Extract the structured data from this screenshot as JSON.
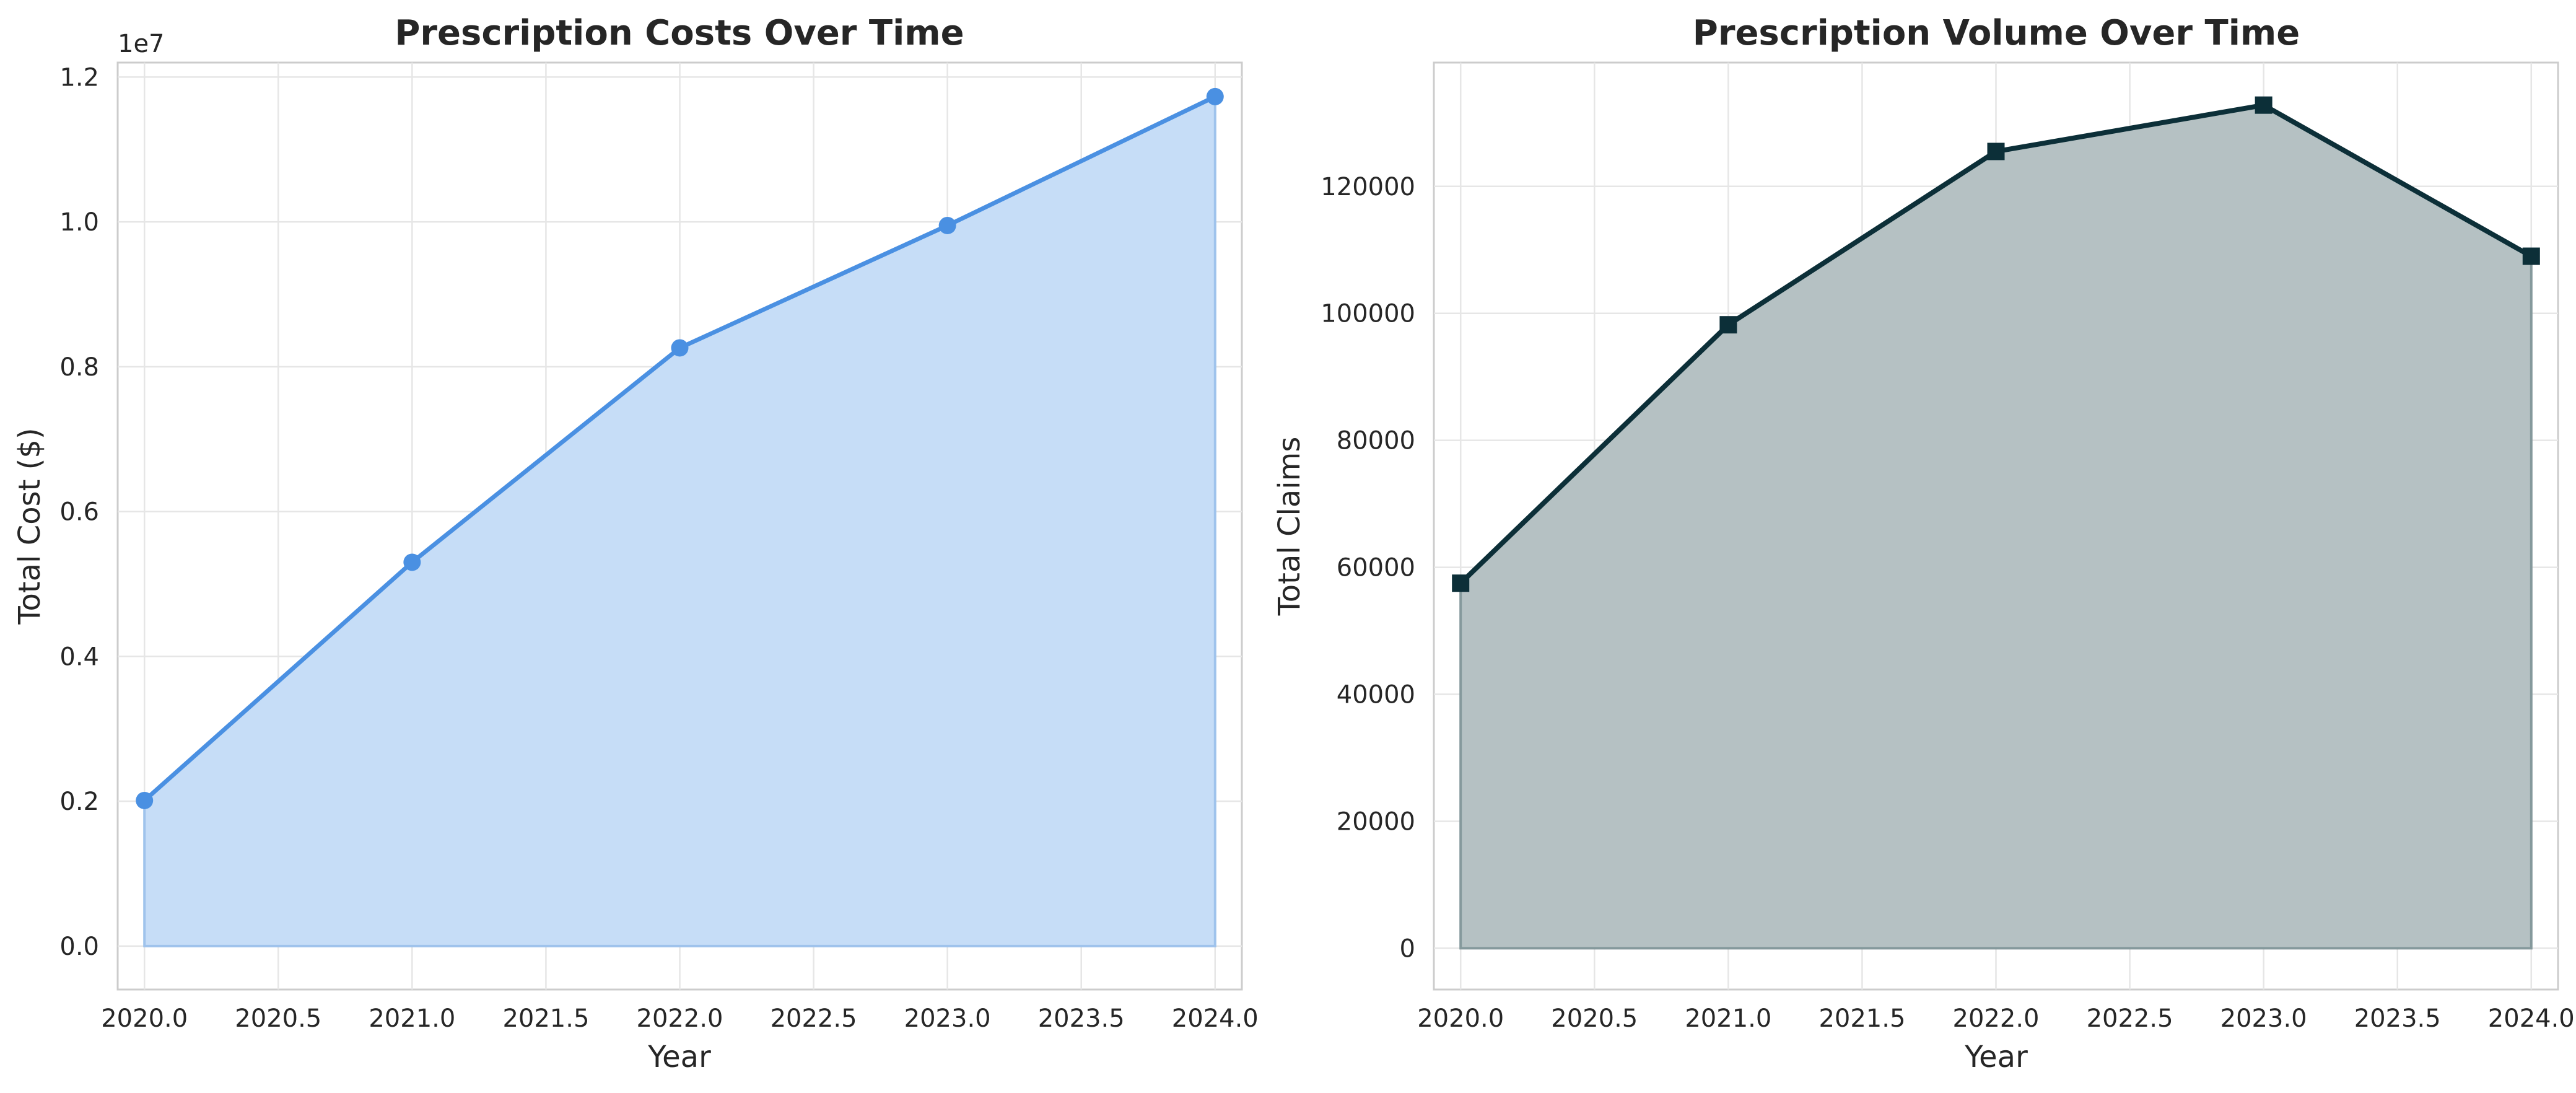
{
  "chart_data": [
    {
      "type": "area",
      "title": "Prescription Costs Over Time",
      "xlabel": "Year",
      "ylabel": "Total Cost ($)",
      "y_offset_label": "1e7",
      "x": [
        2020,
        2021,
        2022,
        2023,
        2024
      ],
      "series": [
        {
          "values": [
            2010000,
            5300000,
            8260000,
            9950000,
            11730000
          ]
        }
      ],
      "xlim": [
        2019.9,
        2024.1
      ],
      "ylim": [
        -0.06,
        1.22
      ],
      "y_scale_factor": 10000000,
      "x_ticks": [
        "2020.0",
        "2020.5",
        "2021.0",
        "2021.5",
        "2022.0",
        "2022.5",
        "2023.0",
        "2023.5",
        "2024.0"
      ],
      "y_ticks": [
        "0.0",
        "0.2",
        "0.4",
        "0.6",
        "0.8",
        "1.0",
        "1.2"
      ],
      "marker": "circle",
      "line_color": "#4a90e2",
      "fill_color": "#c6ddf7",
      "grid": true
    },
    {
      "type": "area",
      "title": "Prescription Volume Over Time",
      "xlabel": "Year",
      "ylabel": "Total Claims",
      "x": [
        2020,
        2021,
        2022,
        2023,
        2024
      ],
      "series": [
        {
          "values": [
            57500,
            98200,
            125500,
            132800,
            109000
          ]
        }
      ],
      "xlim": [
        2019.9,
        2024.1
      ],
      "ylim": [
        -6500,
        139500
      ],
      "y_scale_factor": 1,
      "x_ticks": [
        "2020.0",
        "2020.5",
        "2021.0",
        "2021.5",
        "2022.0",
        "2022.5",
        "2023.0",
        "2023.5",
        "2024.0"
      ],
      "y_ticks": [
        "0",
        "20000",
        "40000",
        "60000",
        "80000",
        "100000",
        "120000"
      ],
      "marker": "square",
      "line_color": "#0c2f38",
      "fill_color": "#b5c1c3",
      "grid": true
    }
  ]
}
